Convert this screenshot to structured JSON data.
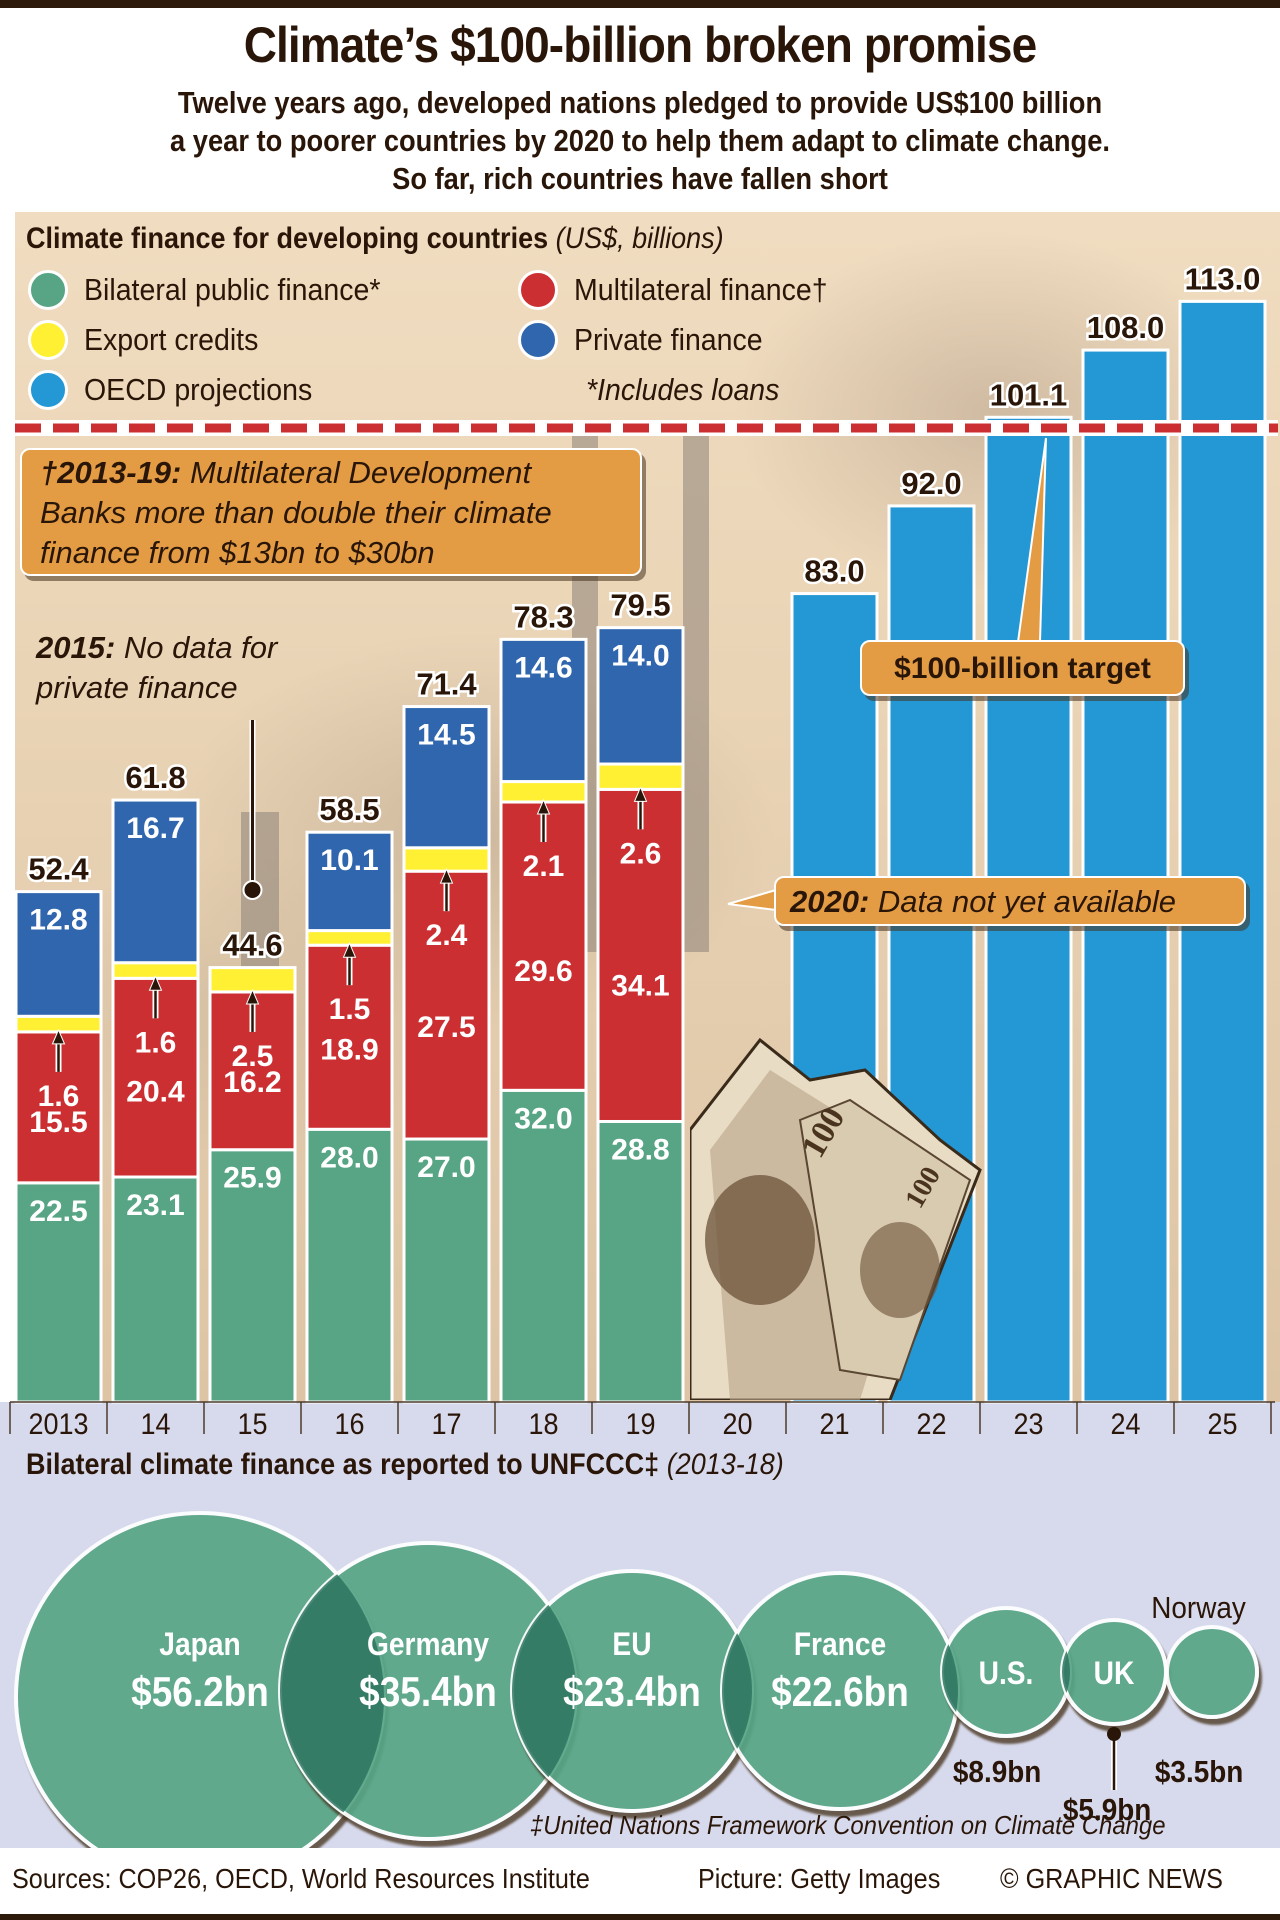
{
  "header": {
    "title": "Climate’s $100-billion broken promise",
    "subtitle_lines": [
      "Twelve years ago, developed nations pledged to provide US$100 billion",
      "a year to poorer countries by 2020 to help them adapt to climate change.",
      "So far, rich countries have fallen short"
    ]
  },
  "colors": {
    "bilateral": "#57a585",
    "multilateral": "#cc2f32",
    "export": "#fff033",
    "private": "#2f66ad",
    "oecd": "#2497d5",
    "target_line": "#cc2f32",
    "callout": "#e39c44",
    "lower_panel": "#d7d9ec",
    "text": "#2a1608"
  },
  "legend": {
    "title": "Climate finance for developing countries",
    "units": "(US$, billions)",
    "items": [
      {
        "key": "bilateral",
        "label": "Bilateral public finance*"
      },
      {
        "key": "multilateral",
        "label": "Multilateral finance†"
      },
      {
        "key": "export",
        "label": "Export credits"
      },
      {
        "key": "private",
        "label": "Private finance"
      },
      {
        "key": "oecd",
        "label": "OECD projections"
      }
    ],
    "note": "*Includes loans"
  },
  "callouts": {
    "mdb_bold": "†2013-19:",
    "mdb_text_1": " Multilateral Development",
    "mdb_text_2": "Banks more than double their climate",
    "mdb_text_3": "finance from $13bn to $30bn",
    "no_data_2015_bold": "2015:",
    "no_data_2015_text_1": " No data for",
    "no_data_2015_text_2": "private finance",
    "year2020_bold": "2020:",
    "year2020_text": " Data not yet available",
    "target": "$100-billion target"
  },
  "chart_data": {
    "type": "bar",
    "stacked": true,
    "title": "Climate finance for developing countries",
    "ylabel": "US$, billions",
    "ylim": [
      0,
      115
    ],
    "categories": [
      "2013",
      "14",
      "15",
      "16",
      "17",
      "18",
      "19",
      "20",
      "21",
      "22",
      "23",
      "24",
      "25"
    ],
    "series": [
      {
        "name": "Bilateral public finance",
        "key": "bilateral",
        "values": [
          22.5,
          23.1,
          25.9,
          28.0,
          27.0,
          32.0,
          28.8,
          null,
          null,
          null,
          null,
          null,
          null
        ]
      },
      {
        "name": "Multilateral finance",
        "key": "multilateral",
        "values": [
          15.5,
          20.4,
          16.2,
          18.9,
          27.5,
          29.6,
          34.1,
          null,
          null,
          null,
          null,
          null,
          null
        ]
      },
      {
        "name": "Export credits",
        "key": "export",
        "values": [
          1.6,
          1.6,
          2.5,
          1.5,
          2.4,
          2.1,
          2.6,
          null,
          null,
          null,
          null,
          null,
          null
        ]
      },
      {
        "name": "Private finance",
        "key": "private",
        "values": [
          12.8,
          16.7,
          null,
          10.1,
          14.5,
          14.6,
          14.0,
          null,
          null,
          null,
          null,
          null,
          null
        ]
      },
      {
        "name": "OECD projections",
        "key": "oecd",
        "values": [
          null,
          null,
          null,
          null,
          null,
          null,
          null,
          null,
          83.0,
          92.0,
          101.1,
          108.0,
          113.0
        ]
      }
    ],
    "totals": [
      "52.4",
      "61.8",
      "44.6",
      "58.5",
      "71.4",
      "78.3",
      "79.5",
      null,
      "83.0",
      "92.0",
      "101.1",
      "108.0",
      "113.0"
    ],
    "reference_line": {
      "value": 100,
      "label": "$100-billion target",
      "style": "dashed"
    },
    "grid": false,
    "legend_position": "top-left"
  },
  "bubbles": {
    "title": "Bilateral climate finance as reported to UNFCCC‡",
    "period": "(2013-18)",
    "items": [
      {
        "name": "Japan",
        "value": "$56.2bn"
      },
      {
        "name": "Germany",
        "value": "$35.4bn"
      },
      {
        "name": "EU",
        "value": "$23.4bn"
      },
      {
        "name": "France",
        "value": "$22.6bn"
      },
      {
        "name": "U.S.",
        "value": "$8.9bn"
      },
      {
        "name": "UK",
        "value": "$5.9bn"
      },
      {
        "name": "Norway",
        "value": "$3.5bn"
      }
    ],
    "footnote": "‡United Nations Framework Convention on Climate Change"
  },
  "footer": {
    "sources": "Sources: COP26, OECD, World Resources Institute",
    "picture": "Picture: Getty Images",
    "credit": "© GRAPHIC NEWS"
  }
}
